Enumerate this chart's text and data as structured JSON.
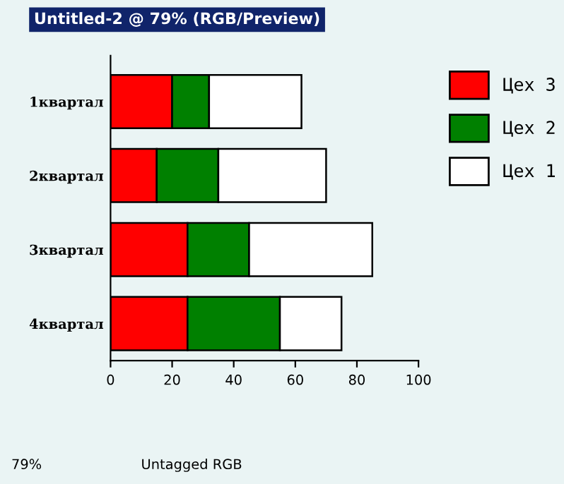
{
  "chart_data": {
    "type": "bar",
    "orientation": "horizontal",
    "stacked": true,
    "title": "Untitled-2 @ 79% (RGB/Preview)",
    "annotations": [
      "79%",
      "Untagged RGB"
    ],
    "categories": [
      "1квартал",
      "2квартал",
      "3квартал",
      "4квартал"
    ],
    "series": [
      {
        "name": "Цех 3",
        "color": "#ff0000",
        "values": [
          20,
          15,
          25,
          25
        ]
      },
      {
        "name": "Цех 2",
        "color": "#008000",
        "values": [
          12,
          20,
          20,
          30
        ]
      },
      {
        "name": "Цех 1",
        "color": "#ffffff",
        "values": [
          30,
          35,
          40,
          20
        ]
      }
    ],
    "xlim": [
      0,
      100
    ],
    "xticks": [
      0,
      20,
      40,
      60,
      80,
      100
    ],
    "grid": false,
    "legend": "top right"
  }
}
